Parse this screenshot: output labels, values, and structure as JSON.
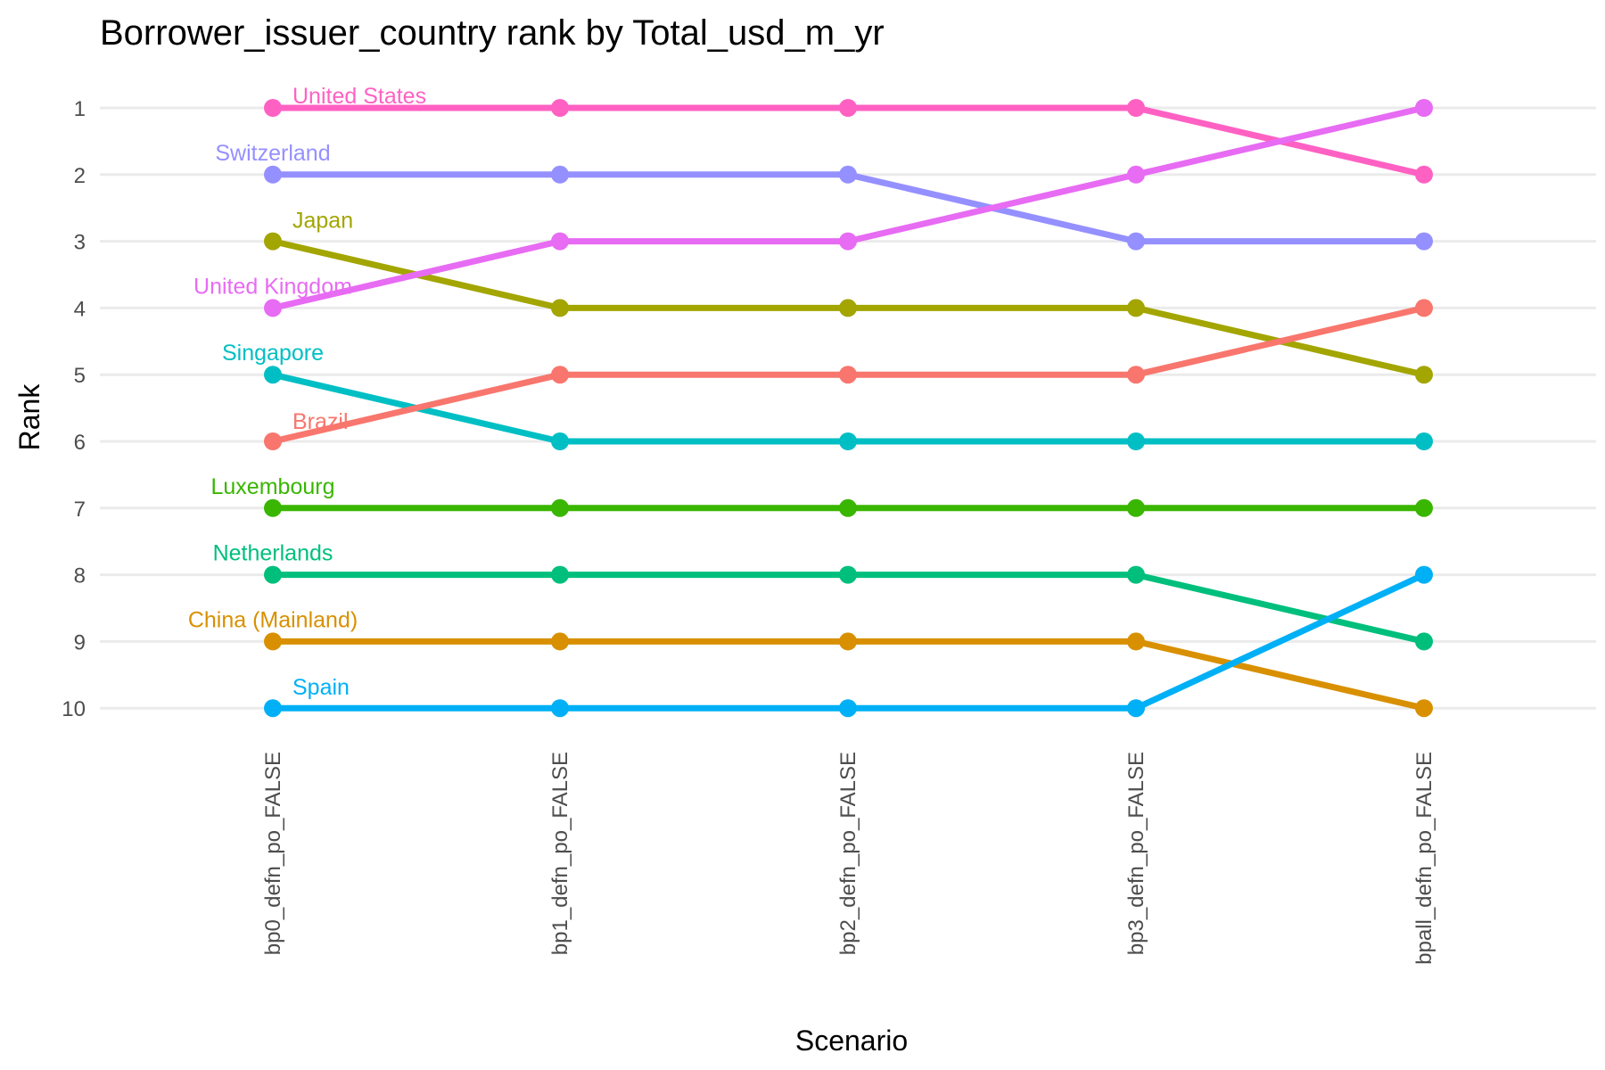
{
  "chart_data": {
    "type": "line",
    "title": "Borrower_issuer_country rank by Total_usd_m_yr",
    "xlabel": "Scenario",
    "ylabel": "Rank",
    "categories": [
      "bp0_defn_po_FALSE",
      "bp1_defn_po_FALSE",
      "bp2_defn_po_FALSE",
      "bp3_defn_po_FALSE",
      "bpall_defn_po_FALSE"
    ],
    "y_ticks": [
      "1",
      "2",
      "3",
      "4",
      "5",
      "6",
      "7",
      "8",
      "9",
      "10"
    ],
    "ylim": [
      1,
      10
    ],
    "y_reversed": true,
    "grid": "horizontal major",
    "legend": "none (labels at first point)",
    "series": [
      {
        "name": "United States",
        "color": "#FF61C3",
        "values": [
          1,
          1,
          1,
          1,
          2
        ]
      },
      {
        "name": "Switzerland",
        "color": "#9590FF",
        "values": [
          2,
          2,
          2,
          3,
          3
        ]
      },
      {
        "name": "Japan",
        "color": "#A3A500",
        "values": [
          3,
          4,
          4,
          4,
          5
        ]
      },
      {
        "name": "United Kingdom",
        "color": "#E76BF3",
        "values": [
          4,
          3,
          3,
          2,
          1
        ]
      },
      {
        "name": "Singapore",
        "color": "#00BFC4",
        "values": [
          5,
          6,
          6,
          6,
          6
        ]
      },
      {
        "name": "Brazil",
        "color": "#F8766D",
        "values": [
          6,
          5,
          5,
          5,
          4
        ]
      },
      {
        "name": "Luxembourg",
        "color": "#39B600",
        "values": [
          7,
          7,
          7,
          7,
          7
        ]
      },
      {
        "name": "Netherlands",
        "color": "#00BF7D",
        "values": [
          8,
          8,
          8,
          8,
          9
        ]
      },
      {
        "name": "China (Mainland)",
        "color": "#D89000",
        "values": [
          9,
          9,
          9,
          9,
          10
        ]
      },
      {
        "name": "Spain",
        "color": "#00B0F6",
        "values": [
          10,
          10,
          10,
          10,
          8
        ]
      }
    ]
  }
}
